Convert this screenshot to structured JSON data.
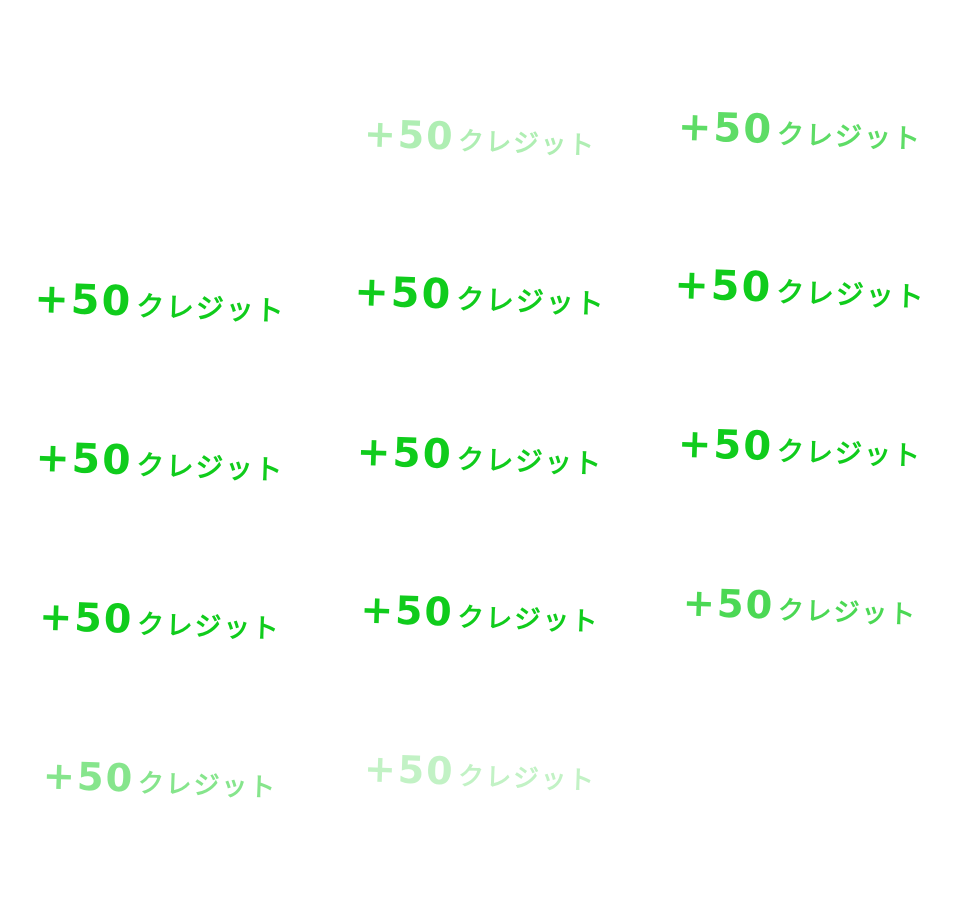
{
  "sprite_sheet": {
    "colors": {
      "text": "#10cc1c",
      "background": "#ffffff"
    },
    "frames": [
      {
        "amount": "",
        "unit": "",
        "opacity": 0
      },
      {
        "amount": "+50",
        "unit": "クレジット",
        "opacity": 0.33
      },
      {
        "amount": "+50",
        "unit": "クレジット",
        "opacity": 0.67
      },
      {
        "amount": "+50",
        "unit": "クレジット",
        "opacity": 1
      },
      {
        "amount": "+50",
        "unit": "クレジット",
        "opacity": 1
      },
      {
        "amount": "+50",
        "unit": "クレジット",
        "opacity": 1
      },
      {
        "amount": "+50",
        "unit": "クレジット",
        "opacity": 1
      },
      {
        "amount": "+50",
        "unit": "クレジット",
        "opacity": 1
      },
      {
        "amount": "+50",
        "unit": "クレジット",
        "opacity": 1
      },
      {
        "amount": "+50",
        "unit": "クレジット",
        "opacity": 1
      },
      {
        "amount": "+50",
        "unit": "クレジット",
        "opacity": 1
      },
      {
        "amount": "+50",
        "unit": "クレジット",
        "opacity": 0.75
      },
      {
        "amount": "+50",
        "unit": "クレジット",
        "opacity": 0.5
      },
      {
        "amount": "+50",
        "unit": "クレジット",
        "opacity": 0.25
      },
      {
        "amount": "",
        "unit": "",
        "opacity": 0
      }
    ]
  }
}
